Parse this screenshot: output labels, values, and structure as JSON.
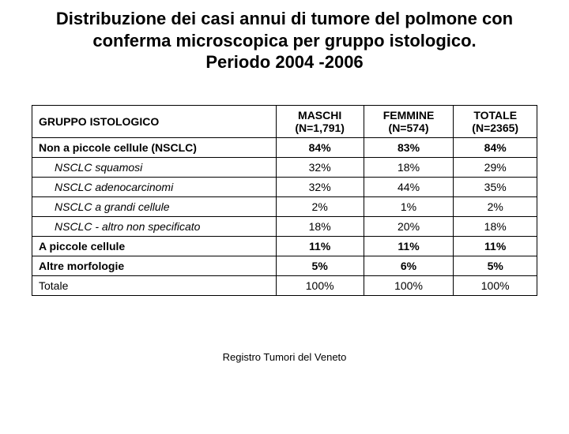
{
  "title_line1": "Distribuzione dei casi annui di tumore del polmone con",
  "title_line2": "conferma microscopica  per gruppo istologico.",
  "title_line3": "Periodo 2004 -2006",
  "table": {
    "header": {
      "label": "GRUPPO ISTOLOGICO",
      "col1_l1": "MASCHI",
      "col1_l2": "(N=1,791)",
      "col2_l1": "FEMMINE",
      "col2_l2": "(N=574)",
      "col3_l1": "TOTALE",
      "col3_l2": "(N=2365)"
    },
    "rows": [
      {
        "label": "Non a piccole cellule (NSCLC)",
        "style": "bold",
        "v": [
          "84%",
          "83%",
          "84%"
        ],
        "vstyle": "bold"
      },
      {
        "label": "NSCLC squamosi",
        "style": "italic",
        "v": [
          "32%",
          "18%",
          "29%"
        ],
        "vstyle": "plain"
      },
      {
        "label": "NSCLC adenocarcinomi",
        "style": "italic",
        "v": [
          "32%",
          "44%",
          "35%"
        ],
        "vstyle": "plain"
      },
      {
        "label": "NSCLC a grandi cellule",
        "style": "italic",
        "v": [
          "2%",
          "1%",
          "2%"
        ],
        "vstyle": "plain"
      },
      {
        "label": "NSCLC - altro non specificato",
        "style": "italic",
        "v": [
          "18%",
          "20%",
          "18%"
        ],
        "vstyle": "plain"
      },
      {
        "label": "A piccole cellule",
        "style": "bold",
        "v": [
          "11%",
          "11%",
          "11%"
        ],
        "vstyle": "bold"
      },
      {
        "label": "Altre morfologie",
        "style": "bold",
        "v": [
          "5%",
          "6%",
          "5%"
        ],
        "vstyle": "bold"
      },
      {
        "label": "Totale",
        "style": "plain",
        "v": [
          "100%",
          "100%",
          "100%"
        ],
        "vstyle": "plain"
      }
    ]
  },
  "footer": "Registro Tumori del Veneto"
}
